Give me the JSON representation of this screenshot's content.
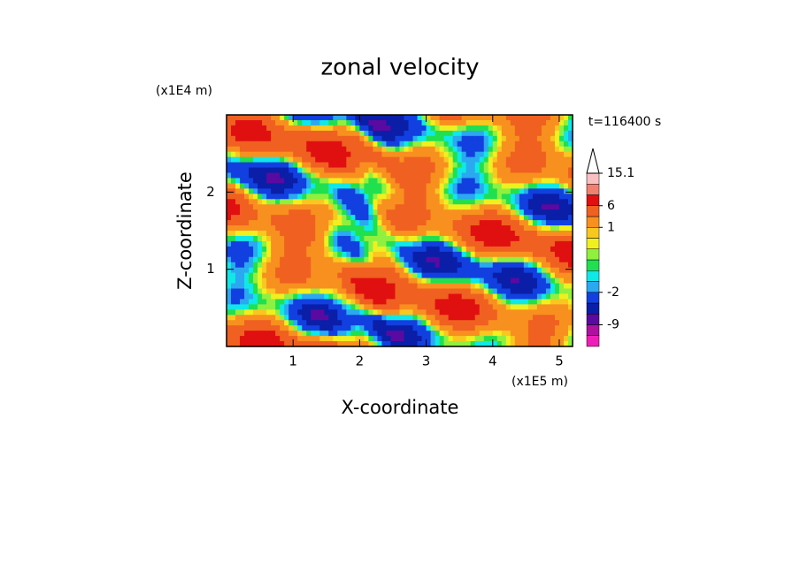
{
  "chart_data": {
    "type": "contour",
    "title": "zonal velocity",
    "x_label": "X-coordinate",
    "y_label": "Z-coordinate",
    "x_unit": "(x1E5 m)",
    "y_unit": "(x1E4 m)",
    "time_label": "t=116400 s",
    "xlim": [
      0,
      5.2
    ],
    "ylim": [
      0,
      3
    ],
    "xticks": [
      1,
      2,
      3,
      4,
      5
    ],
    "yticks": [
      1,
      2
    ],
    "colorbar": {
      "levels": [
        -15,
        -12,
        -9,
        -6,
        -4,
        -2,
        -1.5,
        -1,
        -0.5,
        0,
        0.5,
        1,
        3,
        6,
        9,
        12,
        15.1
      ],
      "colors": [
        "#ee1fb8",
        "#b0109f",
        "#5a0aa0",
        "#0a1ea8",
        "#1240e0",
        "#2aa8f0",
        "#10e8e8",
        "#20e050",
        "#90f040",
        "#f0f020",
        "#f8c820",
        "#f89020",
        "#f06020",
        "#e01010",
        "#f08070",
        "#f8c0c0"
      ],
      "ticks": [
        -9,
        -2,
        1,
        6,
        15.1
      ]
    }
  }
}
